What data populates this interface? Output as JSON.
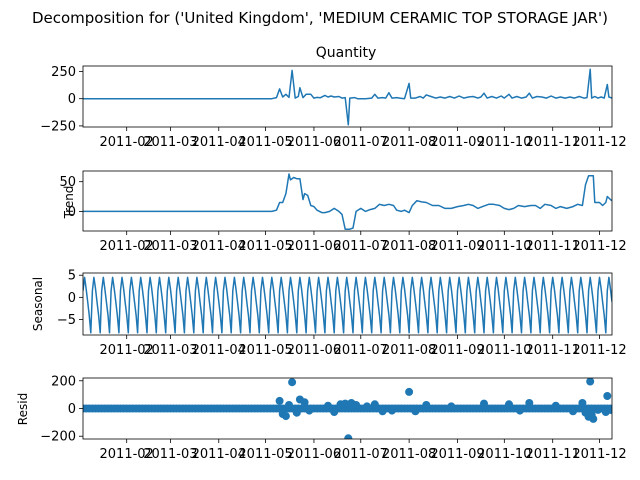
{
  "figure": {
    "suptitle": "Decomposition for ('United Kingdom', 'MEDIUM CERAMIC TOP STORAGE JAR')",
    "x_tick_labels": [
      "2011-02",
      "2011-03",
      "2011-04",
      "2011-05",
      "2011-06",
      "2011-07",
      "2011-08",
      "2011-09",
      "2011-10",
      "2011-11",
      "2011-12"
    ],
    "line_color": "#1f77b4"
  },
  "chart_data": [
    {
      "type": "line",
      "panel": "observed",
      "title": "Quantity",
      "ylabel": "",
      "xlim": [
        "2011-01-04",
        "2011-12-09"
      ],
      "ylim": [
        -260,
        300
      ],
      "yticks": [
        250,
        0,
        -250
      ],
      "series": [
        {
          "x_start": "2011-01-04",
          "points": [
            [
              "2011-01-04",
              0
            ],
            [
              "2011-05-05",
              0
            ],
            [
              "2011-05-08",
              10
            ],
            [
              "2011-05-10",
              90
            ],
            [
              "2011-05-12",
              15
            ],
            [
              "2011-05-14",
              40
            ],
            [
              "2011-05-16",
              12
            ],
            [
              "2011-05-18",
              260
            ],
            [
              "2011-05-20",
              5
            ],
            [
              "2011-05-22",
              20
            ],
            [
              "2011-05-23",
              100
            ],
            [
              "2011-05-25",
              10
            ],
            [
              "2011-05-27",
              40
            ],
            [
              "2011-05-30",
              40
            ],
            [
              "2011-06-01",
              5
            ],
            [
              "2011-06-03",
              12
            ],
            [
              "2011-06-05",
              8
            ],
            [
              "2011-06-08",
              30
            ],
            [
              "2011-06-10",
              15
            ],
            [
              "2011-06-12",
              25
            ],
            [
              "2011-06-14",
              15
            ],
            [
              "2011-06-17",
              20
            ],
            [
              "2011-06-19",
              5
            ],
            [
              "2011-06-21",
              10
            ],
            [
              "2011-06-23",
              -240
            ],
            [
              "2011-06-24",
              5
            ],
            [
              "2011-06-27",
              10
            ],
            [
              "2011-06-29",
              0
            ],
            [
              "2011-07-04",
              0
            ],
            [
              "2011-07-08",
              5
            ],
            [
              "2011-07-10",
              40
            ],
            [
              "2011-07-12",
              5
            ],
            [
              "2011-07-15",
              10
            ],
            [
              "2011-07-17",
              5
            ],
            [
              "2011-07-19",
              55
            ],
            [
              "2011-07-21",
              5
            ],
            [
              "2011-07-24",
              10
            ],
            [
              "2011-07-26",
              5
            ],
            [
              "2011-07-29",
              0
            ],
            [
              "2011-08-01",
              140
            ],
            [
              "2011-08-02",
              5
            ],
            [
              "2011-08-05",
              5
            ],
            [
              "2011-08-08",
              20
            ],
            [
              "2011-08-10",
              5
            ],
            [
              "2011-08-12",
              35
            ],
            [
              "2011-08-15",
              20
            ],
            [
              "2011-08-18",
              5
            ],
            [
              "2011-08-21",
              15
            ],
            [
              "2011-08-24",
              5
            ],
            [
              "2011-08-27",
              20
            ],
            [
              "2011-08-30",
              5
            ],
            [
              "2011-09-02",
              25
            ],
            [
              "2011-09-05",
              5
            ],
            [
              "2011-09-08",
              15
            ],
            [
              "2011-09-11",
              20
            ],
            [
              "2011-09-14",
              5
            ],
            [
              "2011-09-16",
              15
            ],
            [
              "2011-09-18",
              50
            ],
            [
              "2011-09-20",
              5
            ],
            [
              "2011-09-23",
              20
            ],
            [
              "2011-09-26",
              5
            ],
            [
              "2011-09-29",
              25
            ],
            [
              "2011-10-01",
              5
            ],
            [
              "2011-10-04",
              40
            ],
            [
              "2011-10-06",
              5
            ],
            [
              "2011-10-09",
              20
            ],
            [
              "2011-10-12",
              5
            ],
            [
              "2011-10-15",
              15
            ],
            [
              "2011-10-17",
              50
            ],
            [
              "2011-10-19",
              5
            ],
            [
              "2011-10-22",
              20
            ],
            [
              "2011-10-25",
              15
            ],
            [
              "2011-10-28",
              5
            ],
            [
              "2011-10-31",
              25
            ],
            [
              "2011-11-03",
              5
            ],
            [
              "2011-11-06",
              15
            ],
            [
              "2011-11-09",
              5
            ],
            [
              "2011-11-12",
              15
            ],
            [
              "2011-11-15",
              5
            ],
            [
              "2011-11-18",
              20
            ],
            [
              "2011-11-21",
              5
            ],
            [
              "2011-11-23",
              10
            ],
            [
              "2011-11-25",
              270
            ],
            [
              "2011-11-26",
              5
            ],
            [
              "2011-11-28",
              20
            ],
            [
              "2011-11-30",
              5
            ],
            [
              "2011-12-02",
              15
            ],
            [
              "2011-12-04",
              5
            ],
            [
              "2011-12-06",
              130
            ],
            [
              "2011-12-07",
              15
            ],
            [
              "2011-12-09",
              5
            ]
          ]
        }
      ]
    },
    {
      "type": "line",
      "panel": "trend",
      "title": "",
      "ylabel": "Trend",
      "xlim": [
        "2011-01-04",
        "2011-12-09"
      ],
      "ylim": [
        -33,
        68
      ],
      "yticks": [
        50,
        0
      ],
      "series": [
        {
          "x_start": "2011-01-04",
          "points": [
            [
              "2011-01-04",
              0
            ],
            [
              "2011-05-05",
              0
            ],
            [
              "2011-05-08",
              2
            ],
            [
              "2011-05-10",
              15
            ],
            [
              "2011-05-12",
              15
            ],
            [
              "2011-05-14",
              30
            ],
            [
              "2011-05-16",
              63
            ],
            [
              "2011-05-17",
              53
            ],
            [
              "2011-05-19",
              57
            ],
            [
              "2011-05-21",
              55
            ],
            [
              "2011-05-23",
              55
            ],
            [
              "2011-05-25",
              20
            ],
            [
              "2011-05-26",
              30
            ],
            [
              "2011-05-28",
              27
            ],
            [
              "2011-05-30",
              10
            ],
            [
              "2011-06-01",
              8
            ],
            [
              "2011-06-03",
              2
            ],
            [
              "2011-06-06",
              -2
            ],
            [
              "2011-06-08",
              -2
            ],
            [
              "2011-06-11",
              0
            ],
            [
              "2011-06-14",
              5
            ],
            [
              "2011-06-17",
              0
            ],
            [
              "2011-06-19",
              -5
            ],
            [
              "2011-06-21",
              -30
            ],
            [
              "2011-06-24",
              -30
            ],
            [
              "2011-06-26",
              -28
            ],
            [
              "2011-06-28",
              0
            ],
            [
              "2011-07-01",
              5
            ],
            [
              "2011-07-04",
              0
            ],
            [
              "2011-07-07",
              3
            ],
            [
              "2011-07-10",
              5
            ],
            [
              "2011-07-13",
              12
            ],
            [
              "2011-07-16",
              10
            ],
            [
              "2011-07-19",
              12
            ],
            [
              "2011-07-22",
              10
            ],
            [
              "2011-07-24",
              2
            ],
            [
              "2011-07-27",
              0
            ],
            [
              "2011-07-29",
              2
            ],
            [
              "2011-08-01",
              -2
            ],
            [
              "2011-08-03",
              10
            ],
            [
              "2011-08-06",
              18
            ],
            [
              "2011-08-09",
              16
            ],
            [
              "2011-08-12",
              15
            ],
            [
              "2011-08-16",
              10
            ],
            [
              "2011-08-20",
              10
            ],
            [
              "2011-08-24",
              5
            ],
            [
              "2011-08-28",
              5
            ],
            [
              "2011-09-01",
              8
            ],
            [
              "2011-09-05",
              10
            ],
            [
              "2011-09-08",
              12
            ],
            [
              "2011-09-11",
              10
            ],
            [
              "2011-09-14",
              5
            ],
            [
              "2011-09-17",
              8
            ],
            [
              "2011-09-21",
              12
            ],
            [
              "2011-09-24",
              12
            ],
            [
              "2011-09-28",
              10
            ],
            [
              "2011-10-01",
              5
            ],
            [
              "2011-10-04",
              3
            ],
            [
              "2011-10-07",
              5
            ],
            [
              "2011-10-10",
              10
            ],
            [
              "2011-10-14",
              8
            ],
            [
              "2011-10-18",
              10
            ],
            [
              "2011-10-21",
              10
            ],
            [
              "2011-10-24",
              5
            ],
            [
              "2011-10-27",
              12
            ],
            [
              "2011-10-31",
              10
            ],
            [
              "2011-11-03",
              5
            ],
            [
              "2011-11-06",
              8
            ],
            [
              "2011-11-10",
              5
            ],
            [
              "2011-11-14",
              8
            ],
            [
              "2011-11-17",
              12
            ],
            [
              "2011-11-20",
              10
            ],
            [
              "2011-11-22",
              45
            ],
            [
              "2011-11-24",
              60
            ],
            [
              "2011-11-27",
              60
            ],
            [
              "2011-11-28",
              15
            ],
            [
              "2011-12-01",
              15
            ],
            [
              "2011-12-03",
              10
            ],
            [
              "2011-12-05",
              15
            ],
            [
              "2011-12-06",
              25
            ],
            [
              "2011-12-08",
              20
            ],
            [
              "2011-12-09",
              18
            ]
          ]
        }
      ]
    },
    {
      "type": "line",
      "panel": "seasonal",
      "title": "",
      "ylabel": "Seasonal",
      "xlim": [
        "2011-01-04",
        "2011-12-09"
      ],
      "ylim": [
        -8.5,
        5.5
      ],
      "yticks": [
        5,
        0,
        -5
      ],
      "period_days": 6,
      "pattern": [
        1.5,
        4.5,
        2.0,
        -1.0,
        -4.0,
        -8.0
      ],
      "series": [
        {
          "x_start": "2011-01-04",
          "repeat": "pattern",
          "x_end": "2011-12-09"
        }
      ]
    },
    {
      "type": "scatter",
      "panel": "resid",
      "title": "",
      "ylabel": "Resid",
      "xlim": [
        "2011-01-04",
        "2011-12-09"
      ],
      "ylim": [
        -220,
        220
      ],
      "yticks": [
        200,
        0,
        -200
      ],
      "baseline_every_days": 2,
      "baseline_value": 0,
      "outliers": [
        [
          "2011-05-10",
          55
        ],
        [
          "2011-05-12",
          -40
        ],
        [
          "2011-05-14",
          -55
        ],
        [
          "2011-05-16",
          25
        ],
        [
          "2011-05-18",
          190
        ],
        [
          "2011-05-21",
          -30
        ],
        [
          "2011-05-23",
          65
        ],
        [
          "2011-05-26",
          45
        ],
        [
          "2011-05-29",
          -15
        ],
        [
          "2011-06-10",
          20
        ],
        [
          "2011-06-14",
          -25
        ],
        [
          "2011-06-18",
          30
        ],
        [
          "2011-06-21",
          35
        ],
        [
          "2011-06-23",
          -215
        ],
        [
          "2011-06-25",
          40
        ],
        [
          "2011-06-28",
          25
        ],
        [
          "2011-07-05",
          15
        ],
        [
          "2011-07-10",
          30
        ],
        [
          "2011-07-15",
          -20
        ],
        [
          "2011-07-21",
          -15
        ],
        [
          "2011-08-01",
          120
        ],
        [
          "2011-08-05",
          -20
        ],
        [
          "2011-08-12",
          25
        ],
        [
          "2011-08-28",
          15
        ],
        [
          "2011-09-18",
          35
        ],
        [
          "2011-10-04",
          30
        ],
        [
          "2011-10-11",
          -15
        ],
        [
          "2011-10-17",
          40
        ],
        [
          "2011-11-03",
          20
        ],
        [
          "2011-11-14",
          -20
        ],
        [
          "2011-11-20",
          40
        ],
        [
          "2011-11-22",
          -30
        ],
        [
          "2011-11-24",
          -60
        ],
        [
          "2011-11-25",
          195
        ],
        [
          "2011-11-26",
          -45
        ],
        [
          "2011-11-27",
          -75
        ],
        [
          "2011-11-30",
          -10
        ],
        [
          "2011-12-05",
          -25
        ],
        [
          "2011-12-06",
          90
        ],
        [
          "2011-12-08",
          -10
        ]
      ]
    }
  ]
}
